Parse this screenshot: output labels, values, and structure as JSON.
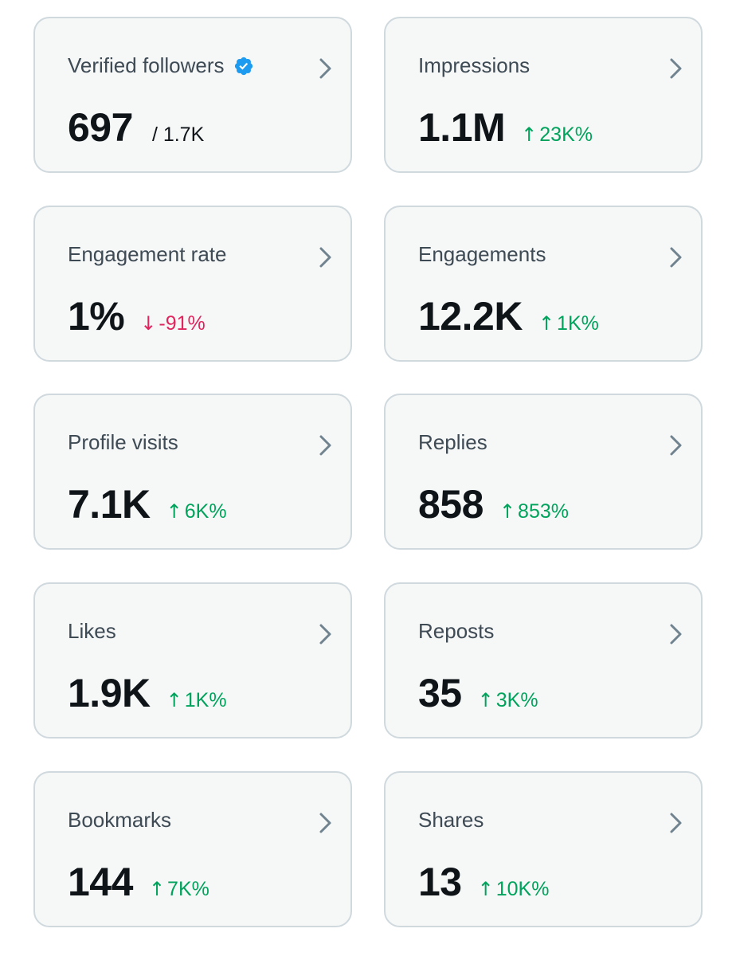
{
  "colors": {
    "card_bg": "#f6f7f7",
    "card_border": "#cfd9de",
    "label": "#3e4a54",
    "value": "#0f1419",
    "up": "#00a35c",
    "down": "#e0245e",
    "verified": "#1d9bf0",
    "chevron": "#71838f"
  },
  "cards": [
    {
      "label": "Verified followers",
      "icon": "verified-badge-icon",
      "value": "697",
      "sub": "/ 1.7K"
    },
    {
      "label": "Impressions",
      "value": "1.1M",
      "direction": "up",
      "arrow": "↑",
      "change": "23K%"
    },
    {
      "label": "Engagement rate",
      "value": "1%",
      "direction": "down",
      "arrow": "↓",
      "change": "-91%"
    },
    {
      "label": "Engagements",
      "value": "12.2K",
      "direction": "up",
      "arrow": "↑",
      "change": "1K%"
    },
    {
      "label": "Profile visits",
      "value": "7.1K",
      "direction": "up",
      "arrow": "↑",
      "change": "6K%"
    },
    {
      "label": "Replies",
      "value": "858",
      "direction": "up",
      "arrow": "↑",
      "change": "853%"
    },
    {
      "label": "Likes",
      "value": "1.9K",
      "direction": "up",
      "arrow": "↑",
      "change": "1K%"
    },
    {
      "label": "Reposts",
      "value": "35",
      "direction": "up",
      "arrow": "↑",
      "change": "3K%"
    },
    {
      "label": "Bookmarks",
      "value": "144",
      "direction": "up",
      "arrow": "↑",
      "change": "7K%"
    },
    {
      "label": "Shares",
      "value": "13",
      "direction": "up",
      "arrow": "↑",
      "change": "10K%"
    }
  ]
}
